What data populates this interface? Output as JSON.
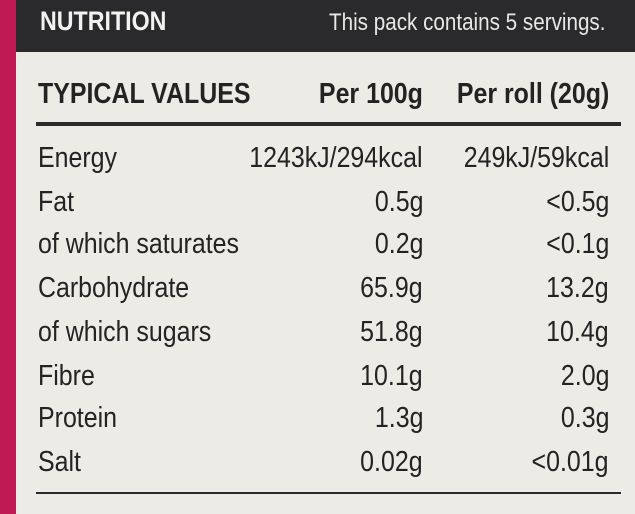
{
  "header": {
    "title": "NUTRITION",
    "servings": "This pack contains 5 servings."
  },
  "columns": [
    "TYPICAL VALUES",
    "Per 100g",
    "Per roll (20g)"
  ],
  "rows": [
    {
      "name": "Energy",
      "per100g": "1243kJ/294kcal",
      "perRoll": "249kJ/59kcal"
    },
    {
      "name": "Fat",
      "per100g": "0.5g",
      "perRoll": "<0.5g"
    },
    {
      "name": "of which saturates",
      "per100g": "0.2g",
      "perRoll": "<0.1g"
    },
    {
      "name": "Carbohydrate",
      "per100g": "65.9g",
      "perRoll": "13.2g"
    },
    {
      "name": "of which sugars",
      "per100g": "51.8g",
      "perRoll": "10.4g"
    },
    {
      "name": "Fibre",
      "per100g": "10.1g",
      "perRoll": "2.0g"
    },
    {
      "name": "Protein",
      "per100g": "1.3g",
      "perRoll": "0.3g"
    },
    {
      "name": "Salt",
      "per100g": "0.02g",
      "perRoll": "<0.01g"
    }
  ],
  "colors": {
    "panel": "#ecebe6",
    "header": "#2a2a2c",
    "packaging": "#b8174f"
  }
}
